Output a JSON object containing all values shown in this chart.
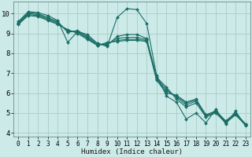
{
  "xlabel": "Humidex (Indice chaleur)",
  "ylabel": "",
  "bg_color": "#cceae7",
  "grid_color": "#b0d0cc",
  "line_color": "#1a6e66",
  "xlim": [
    -0.5,
    23.5
  ],
  "ylim": [
    3.8,
    10.6
  ],
  "yticks": [
    4,
    5,
    6,
    7,
    8,
    9,
    10
  ],
  "xticks": [
    0,
    1,
    2,
    3,
    4,
    5,
    6,
    7,
    8,
    9,
    10,
    11,
    12,
    13,
    14,
    15,
    16,
    17,
    18,
    19,
    20,
    21,
    22,
    23
  ],
  "lines": [
    {
      "x": [
        0,
        1,
        2,
        3,
        4,
        5,
        6,
        7,
        8,
        9,
        10,
        11,
        12,
        13,
        14,
        15,
        16,
        17,
        18,
        19,
        20,
        21,
        22,
        23
      ],
      "y": [
        9.6,
        10.1,
        10.05,
        9.9,
        9.65,
        8.55,
        9.1,
        8.95,
        8.5,
        8.35,
        9.8,
        10.25,
        10.2,
        9.5,
        6.9,
        5.85,
        5.55,
        4.7,
        5.0,
        4.5,
        5.2,
        4.45,
        5.1,
        4.35
      ]
    },
    {
      "x": [
        0,
        1,
        2,
        3,
        4,
        5,
        6,
        7,
        8,
        9,
        10,
        11,
        12,
        13,
        14,
        15,
        16,
        17,
        18,
        19,
        20,
        21,
        22,
        23
      ],
      "y": [
        9.55,
        10.05,
        10.0,
        9.8,
        9.6,
        9.05,
        9.15,
        8.85,
        8.5,
        8.4,
        8.85,
        8.95,
        8.95,
        8.75,
        6.8,
        6.3,
        5.7,
        5.3,
        5.5,
        4.8,
        5.0,
        4.5,
        4.9,
        4.4
      ]
    },
    {
      "x": [
        0,
        1,
        2,
        3,
        4,
        5,
        6,
        7,
        8,
        9,
        10,
        11,
        12,
        13,
        14,
        15,
        16,
        17,
        18,
        19,
        20,
        21,
        22,
        23
      ],
      "y": [
        9.5,
        10.0,
        9.95,
        9.75,
        9.55,
        9.1,
        9.1,
        8.8,
        8.45,
        8.45,
        8.75,
        8.8,
        8.8,
        8.7,
        6.75,
        6.2,
        5.8,
        5.4,
        5.6,
        4.85,
        5.05,
        4.55,
        4.95,
        4.45
      ]
    },
    {
      "x": [
        0,
        1,
        2,
        3,
        4,
        5,
        6,
        7,
        8,
        9,
        10,
        11,
        12,
        13,
        14,
        15,
        16,
        17,
        18,
        19,
        20,
        21,
        22,
        23
      ],
      "y": [
        9.5,
        9.95,
        9.9,
        9.7,
        9.5,
        9.15,
        9.05,
        8.75,
        8.4,
        8.5,
        8.65,
        8.7,
        8.7,
        8.65,
        6.7,
        6.1,
        5.85,
        5.5,
        5.65,
        4.9,
        5.1,
        4.6,
        5.0,
        4.45
      ]
    },
    {
      "x": [
        0,
        1,
        2,
        3,
        4,
        5,
        6,
        7,
        8,
        9,
        10,
        11,
        12,
        13,
        14,
        15,
        16,
        17,
        18,
        19,
        20,
        21,
        22,
        23
      ],
      "y": [
        9.45,
        9.9,
        9.85,
        9.65,
        9.45,
        9.2,
        9.0,
        8.7,
        8.4,
        8.55,
        8.6,
        8.65,
        8.65,
        8.6,
        6.65,
        6.0,
        5.9,
        5.55,
        5.7,
        4.9,
        5.1,
        4.6,
        4.95,
        4.4
      ]
    }
  ],
  "marker": "D",
  "markersize": 2.0,
  "linewidth": 0.8
}
